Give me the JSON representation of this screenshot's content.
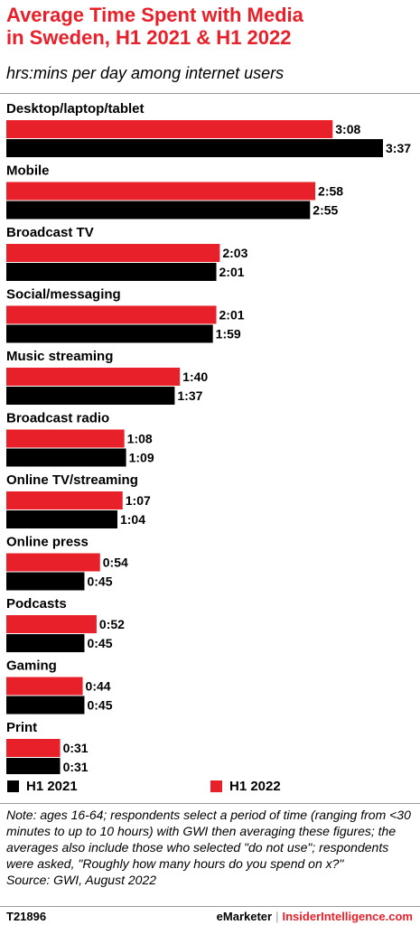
{
  "header": {
    "title_line1": "Average Time Spent with Media",
    "title_line2": "in Sweden, H1 2021 & H1 2022",
    "subtitle": "hrs:mins per day among internet users"
  },
  "colors": {
    "h1_2022": "#e8202a",
    "h1_2021": "#000000"
  },
  "legend": {
    "h1_2021": "H1 2021",
    "h1_2022": "H1 2022"
  },
  "chart_data": {
    "type": "bar",
    "orientation": "horizontal",
    "title": "Average Time Spent with Media in Sweden, H1 2021 & H1 2022",
    "subtitle": "hrs:mins per day among internet users",
    "unit": "minutes per day",
    "legend_position": "bottom",
    "grid": false,
    "categories": [
      "Desktop/laptop/tablet",
      "Mobile",
      "Broadcast TV",
      "Social/messaging",
      "Music streaming",
      "Broadcast radio",
      "Online TV/streaming",
      "Online press",
      "Podcasts",
      "Gaming",
      "Print"
    ],
    "series": [
      {
        "name": "H1 2022",
        "values": [
          188,
          178,
          123,
          121,
          100,
          68,
          67,
          54,
          52,
          44,
          31
        ],
        "labels": [
          "3:08",
          "2:58",
          "2:03",
          "2:01",
          "1:40",
          "1:08",
          "1:07",
          "0:54",
          "0:52",
          "0:44",
          "0:31"
        ]
      },
      {
        "name": "H1 2021",
        "values": [
          217,
          175,
          121,
          119,
          97,
          69,
          64,
          45,
          45,
          45,
          31
        ],
        "labels": [
          "3:37",
          "2:55",
          "2:01",
          "1:59",
          "1:37",
          "1:09",
          "1:04",
          "0:45",
          "0:45",
          "0:45",
          "0:31"
        ]
      }
    ]
  },
  "note": "Note: ages 16-64; respondents select a period of time (ranging from <30 minutes to up to 10 hours) with GWI then averaging these figures; the averages also include those who selected \"do not use\"; respondents were asked, \"Roughly how many hours do you spend on x?\"",
  "source": "Source:  GWI, August 2022",
  "footer": {
    "code": "T21896",
    "brand_left": "eMarketer",
    "separator": "|",
    "brand_right": "InsiderIntelligence.com"
  }
}
